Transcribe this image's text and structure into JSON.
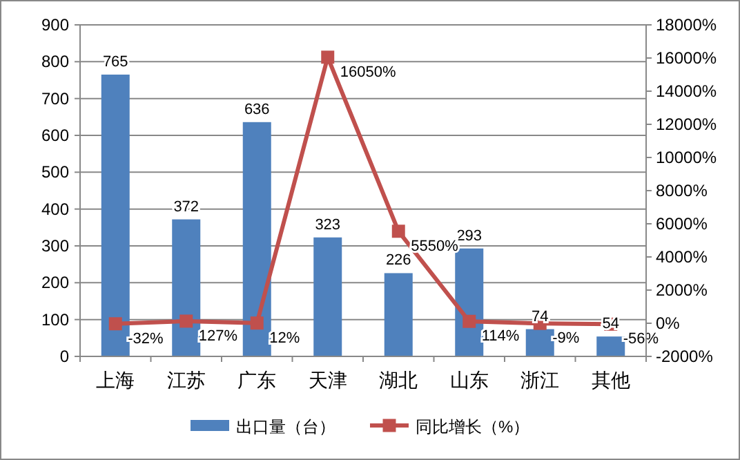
{
  "chart_data": {
    "type": "bar",
    "categories": [
      "上海",
      "江苏",
      "广东",
      "天津",
      "湖北",
      "山东",
      "浙江",
      "其他"
    ],
    "series": [
      {
        "name": "出口量（台）",
        "color": "#4f81bd",
        "values": [
          765,
          372,
          636,
          323,
          226,
          293,
          74,
          54
        ]
      },
      {
        "name": "同比增长（%）",
        "type": "line",
        "axis": "y2",
        "color": "#c0504d",
        "marker": "square",
        "values": [
          -32,
          127,
          12,
          16050,
          5550,
          114,
          -9,
          -56
        ],
        "value_labels": [
          "-32%",
          "127%",
          "12%",
          "16050%",
          "5550%",
          "114%",
          "-9%",
          "-56%"
        ]
      }
    ],
    "ylim": [
      0,
      900
    ],
    "yticks": [
      0,
      100,
      200,
      300,
      400,
      500,
      600,
      700,
      800,
      900
    ],
    "y2lim": [
      -2000,
      18000
    ],
    "y2ticks": [
      {
        "value": -2000,
        "label": "-2000%"
      },
      {
        "value": 0,
        "label": "0%"
      },
      {
        "value": 2000,
        "label": "2000%"
      },
      {
        "value": 4000,
        "label": "4000%"
      },
      {
        "value": 6000,
        "label": "6000%"
      },
      {
        "value": 8000,
        "label": "8000%"
      },
      {
        "value": 10000,
        "label": "10000%"
      },
      {
        "value": 12000,
        "label": "12000%"
      },
      {
        "value": 14000,
        "label": "14000%"
      },
      {
        "value": 16000,
        "label": "16000%"
      },
      {
        "value": 18000,
        "label": "18000%"
      }
    ],
    "grid": "y",
    "data_labels": true,
    "legend": "bottom"
  }
}
